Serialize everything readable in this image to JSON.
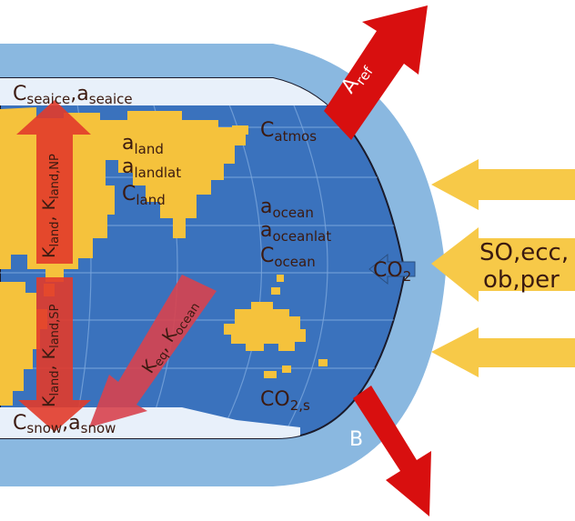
{
  "colors": {
    "atmosphere": "#8ab8e0",
    "ocean": "#3a72bd",
    "land": "#f5c23c",
    "ice": "#e8f0fa",
    "red_arrow": "#d80f0f",
    "yellow_arrow": "#f7c948",
    "label_text": "#3b1a10"
  },
  "labels": {
    "aref": {
      "base": "A",
      "sub": "ref"
    },
    "c_seaice": {
      "a": "C",
      "a_sub": "seaice",
      "sep": ",",
      "b": "a",
      "b_sub": "seaice"
    },
    "c_atmos": {
      "base": "C",
      "sub": "atmos"
    },
    "a_land": {
      "base": "a",
      "sub": "land"
    },
    "a_landlat": {
      "base": "a",
      "sub": "landlat"
    },
    "c_land": {
      "base": "C",
      "sub": "land"
    },
    "a_ocean": {
      "base": "a",
      "sub": "ocean"
    },
    "a_oceanlat": {
      "base": "a",
      "sub": "oceanlat"
    },
    "c_ocean": {
      "base": "C",
      "sub": "ocean"
    },
    "co2": {
      "base": "CO",
      "sub": "2"
    },
    "co2s": {
      "base": "CO",
      "sub": "2,s"
    },
    "k_land_np": {
      "a": "K",
      "a_sub": "land",
      "sep": ", ",
      "b": "K",
      "b_sub": "land,NP"
    },
    "k_land_sp": {
      "a": "K",
      "a_sub": "land",
      "sep": ", ",
      "b": "K",
      "b_sub": "land,SP"
    },
    "k_eq_ocean": {
      "a": "K",
      "a_sub": "eq",
      "sep": ", ",
      "b": "K",
      "b_sub": "ocean"
    },
    "c_snow": {
      "a": "C",
      "a_sub": "snow",
      "sep": ",",
      "b": "a",
      "b_sub": "snow"
    },
    "b": "B",
    "forcing_line1": "SO,ecc,",
    "forcing_line2": "ob,per"
  }
}
